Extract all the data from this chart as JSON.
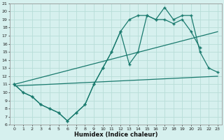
{
  "xlabel": "Humidex (Indice chaleur)",
  "bg_color": "#d6f0ee",
  "grid_color": "#b8ddd8",
  "line_color": "#1a7a6e",
  "xlim": [
    -0.5,
    23.5
  ],
  "ylim": [
    6,
    21
  ],
  "yticks": [
    6,
    7,
    8,
    9,
    10,
    11,
    12,
    13,
    14,
    15,
    16,
    17,
    18,
    19,
    20,
    21
  ],
  "xticks": [
    0,
    1,
    2,
    3,
    4,
    5,
    6,
    7,
    8,
    9,
    10,
    11,
    12,
    13,
    14,
    15,
    16,
    17,
    18,
    19,
    20,
    21,
    22,
    23
  ],
  "curve1_x": [
    0,
    1,
    2,
    3,
    4,
    5,
    6,
    7,
    8,
    9,
    10,
    11,
    12,
    13,
    14,
    15,
    16,
    17,
    18,
    19,
    20,
    21,
    22,
    23
  ],
  "curve1_y": [
    11.0,
    10.0,
    9.5,
    8.5,
    8.0,
    7.5,
    6.5,
    7.5,
    8.5,
    11.0,
    13.0,
    15.0,
    17.5,
    13.5,
    15.0,
    19.5,
    19.0,
    20.5,
    19.0,
    19.5,
    19.5,
    15.0,
    13.0,
    12.5
  ],
  "curve2_x": [
    0,
    1,
    2,
    3,
    4,
    5,
    6,
    7,
    8,
    9,
    10,
    11,
    12,
    13,
    14,
    15,
    16,
    17,
    18,
    19,
    20,
    21,
    22,
    23
  ],
  "curve2_y": [
    11.0,
    10.0,
    9.5,
    8.5,
    8.0,
    7.5,
    6.5,
    7.5,
    8.5,
    11.0,
    13.0,
    15.0,
    17.5,
    19.0,
    19.5,
    19.5,
    19.0,
    19.0,
    18.5,
    19.0,
    17.5,
    15.5,
    null,
    null
  ],
  "line3_x": [
    0,
    23
  ],
  "line3_y": [
    10.8,
    12.0
  ],
  "line4_x": [
    0,
    23
  ],
  "line4_y": [
    11.0,
    17.5
  ]
}
